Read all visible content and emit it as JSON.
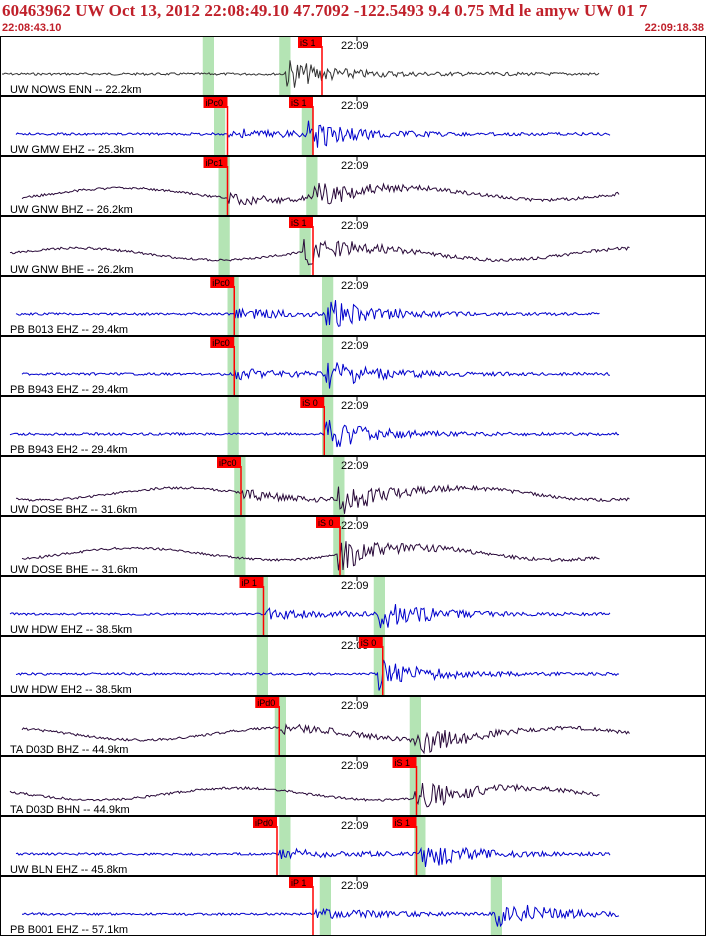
{
  "header": {
    "title": "60463962 UW Oct 13, 2012 22:08:49.10   47.7092 -122.5493  9.4 0.75 Md le amyw UW 01   7",
    "start_time": "22:08:43.10",
    "end_time": "22:09:18.38"
  },
  "colors": {
    "header_text": "#c0202a",
    "pick_box": "#ff0000",
    "window_band": "#b4e4b4",
    "trace_blue": "#0000cc",
    "trace_dark": "#2a0a3a",
    "trace_gray": "#333333"
  },
  "chart_data": {
    "type": "seismogram",
    "x_axis": {
      "unit": "time",
      "start": "22:08:43.10",
      "end": "22:09:18.38",
      "tick_label": "22:09"
    },
    "traces": [
      {
        "label": "UW NOWS ENN -- 22.2km",
        "color": "gray",
        "picks": [
          {
            "label": "iS 1",
            "t": 15.2
          }
        ],
        "bands": [
          {
            "from": 9.9,
            "to": 10.4
          },
          {
            "from": 13.3,
            "to": 13.8
          }
        ]
      },
      {
        "label": "UW GMW EHZ -- 25.3km",
        "color": "blue",
        "picks": [
          {
            "label": "iPc0",
            "t": 11.0
          },
          {
            "label": "iS 1",
            "t": 14.8
          }
        ],
        "bands": [
          {
            "from": 10.4,
            "to": 10.9
          },
          {
            "from": 14.3,
            "to": 14.8
          }
        ]
      },
      {
        "label": "UW GNW BHZ -- 26.2km",
        "color": "dark",
        "picks": [
          {
            "label": "iPc1",
            "t": 11.0
          }
        ],
        "bands": [
          {
            "from": 10.6,
            "to": 11.1
          },
          {
            "from": 14.5,
            "to": 15.0
          }
        ]
      },
      {
        "label": "UW GNW BHE -- 26.2km",
        "color": "dark",
        "picks": [
          {
            "label": "iS 1",
            "t": 14.8
          }
        ],
        "bands": [
          {
            "from": 10.6,
            "to": 11.1
          },
          {
            "from": 14.2,
            "to": 14.7
          }
        ]
      },
      {
        "label": "PB B013 EHZ -- 29.4km",
        "color": "blue",
        "picks": [
          {
            "label": "iPc0",
            "t": 11.3
          }
        ],
        "bands": [
          {
            "from": 11.0,
            "to": 11.5
          },
          {
            "from": 15.2,
            "to": 15.7
          }
        ]
      },
      {
        "label": "PB B943 EHZ -- 29.4km",
        "color": "blue",
        "picks": [
          {
            "label": "iPc0",
            "t": 11.3
          }
        ],
        "bands": [
          {
            "from": 11.0,
            "to": 11.5
          },
          {
            "from": 15.2,
            "to": 15.7
          }
        ]
      },
      {
        "label": "PB B943 EH2 -- 29.4km",
        "color": "blue",
        "picks": [
          {
            "label": "iS 0",
            "t": 15.3
          }
        ],
        "bands": [
          {
            "from": 11.0,
            "to": 11.5
          },
          {
            "from": 15.2,
            "to": 15.7
          }
        ]
      },
      {
        "label": "UW DOSE BHZ -- 31.6km",
        "color": "dark",
        "picks": [
          {
            "label": "iPc0",
            "t": 11.6
          }
        ],
        "bands": [
          {
            "from": 11.3,
            "to": 11.8
          },
          {
            "from": 15.7,
            "to": 16.2
          }
        ]
      },
      {
        "label": "UW DOSE BHE -- 31.6km",
        "color": "dark",
        "picks": [
          {
            "label": "iS 0",
            "t": 16.0
          }
        ],
        "bands": [
          {
            "from": 11.3,
            "to": 11.8
          },
          {
            "from": 15.7,
            "to": 16.2
          }
        ]
      },
      {
        "label": "UW HDW EHZ -- 38.5km",
        "color": "blue",
        "picks": [
          {
            "label": "iP 1",
            "t": 12.6
          }
        ],
        "bands": [
          {
            "from": 12.3,
            "to": 12.8
          },
          {
            "from": 17.5,
            "to": 18.0
          }
        ]
      },
      {
        "label": "UW HDW EH2 -- 38.5km",
        "color": "blue",
        "picks": [
          {
            "label": "iS 0",
            "t": 17.9
          }
        ],
        "bands": [
          {
            "from": 12.3,
            "to": 12.8
          },
          {
            "from": 17.5,
            "to": 18.0
          }
        ]
      },
      {
        "label": "TA D03D BHZ -- 44.9km",
        "color": "dark",
        "picks": [
          {
            "label": "iPd0",
            "t": 13.3
          }
        ],
        "bands": [
          {
            "from": 13.1,
            "to": 13.6
          },
          {
            "from": 19.1,
            "to": 19.6
          }
        ]
      },
      {
        "label": "TA D03D BHN -- 44.9km",
        "color": "dark",
        "picks": [
          {
            "label": "iS 1",
            "t": 19.4
          }
        ],
        "bands": [
          {
            "from": 13.1,
            "to": 13.6
          },
          {
            "from": 19.1,
            "to": 19.6
          }
        ]
      },
      {
        "label": "UW BLN EHZ -- 45.8km",
        "color": "blue",
        "picks": [
          {
            "label": "iPd0",
            "t": 13.2
          },
          {
            "label": "iS 1",
            "t": 19.4
          }
        ],
        "bands": [
          {
            "from": 13.3,
            "to": 13.8
          },
          {
            "from": 19.3,
            "to": 19.8
          }
        ]
      },
      {
        "label": "PB B001 EHZ -- 57.1km",
        "color": "blue",
        "picks": [
          {
            "label": "iP 1",
            "t": 14.8
          }
        ],
        "bands": [
          {
            "from": 15.1,
            "to": 15.6
          },
          {
            "from": 22.7,
            "to": 23.2
          }
        ]
      }
    ]
  }
}
